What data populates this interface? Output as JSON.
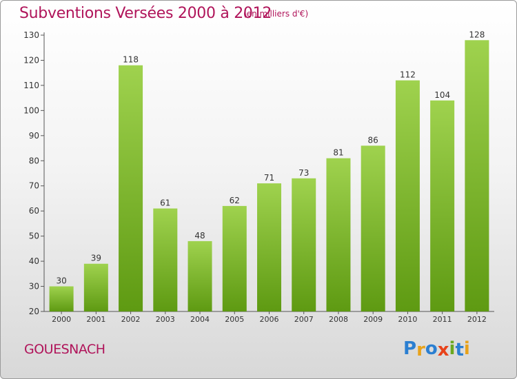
{
  "title": "Subventions Versées 2000 à 2012",
  "subtitle": "(en milliers d'€)",
  "city": "GOUESNACH",
  "logo": {
    "letters": [
      {
        "char": "P",
        "color": "#2b7fd1"
      },
      {
        "char": "r",
        "color": "#e8a21a"
      },
      {
        "char": "o",
        "color": "#2b7fd1"
      },
      {
        "char": "x",
        "color": "#e8421a"
      },
      {
        "char": "i",
        "color": "#6aa820"
      },
      {
        "char": "t",
        "color": "#2b7fd1"
      },
      {
        "char": "i",
        "color": "#e8a21a"
      }
    ]
  },
  "colors": {
    "bar_light": "#9fd24e",
    "bar_dark": "#5e9a12",
    "text": "#b0145a"
  },
  "chart_data": {
    "type": "bar",
    "title": "Subventions Versées 2000 à 2012",
    "subtitle": "(en milliers d'€)",
    "categories": [
      "2000",
      "2001",
      "2002",
      "2003",
      "2004",
      "2005",
      "2006",
      "2007",
      "2008",
      "2009",
      "2010",
      "2011",
      "2012"
    ],
    "values": [
      30,
      39,
      118,
      61,
      48,
      62,
      71,
      73,
      81,
      86,
      112,
      104,
      128
    ],
    "yticks": [
      20,
      30,
      40,
      50,
      60,
      70,
      80,
      90,
      100,
      110,
      120,
      130
    ],
    "ylim": [
      20,
      130
    ],
    "grid": false,
    "legend": "none"
  }
}
